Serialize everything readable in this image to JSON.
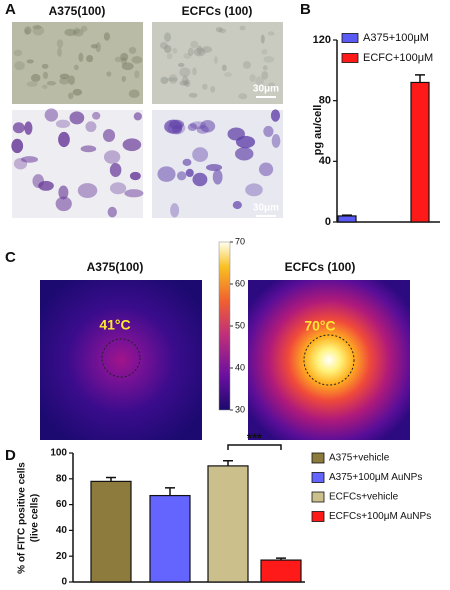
{
  "panel_labels": [
    "A",
    "B",
    "C",
    "D"
  ],
  "panel_a": {
    "titles": [
      "A375(100)",
      "ECFCs (100)"
    ],
    "scale_bars": [
      "30μm",
      "30μm"
    ]
  },
  "panel_c": {
    "titles": [
      "A375(100)",
      "ECFCs (100)"
    ],
    "temperatures": [
      "41°C",
      "70°C"
    ],
    "colorbar": {
      "lim": [
        30,
        70
      ],
      "ticks": [
        30,
        40,
        50,
        60,
        70
      ]
    }
  },
  "chart_data": [
    {
      "type": "bar",
      "ylabel": [
        "pg au/cell"
      ],
      "categories": [
        null
      ],
      "series": [
        {
          "name": "A375+100μM",
          "color": "#5a5af5",
          "values": [
            4
          ],
          "errors": [
            0.5
          ]
        },
        {
          "name": "ECFC+100μM",
          "color": "#ff1a1a",
          "values": [
            92
          ],
          "errors": [
            5
          ]
        }
      ],
      "ylim": [
        0,
        120
      ],
      "yticks": [
        0,
        40,
        80,
        120
      ],
      "grid": false
    },
    {
      "type": "bar",
      "ylabel": [
        "% of FITC positive cells",
        "(live cells)"
      ],
      "categories": [
        null
      ],
      "series": [
        {
          "name": "A375+vehicle",
          "color": "#8c7b3c",
          "values": [
            78
          ],
          "errors": [
            3
          ]
        },
        {
          "name": "A375+100μM AuNPs",
          "color": "#6464ff",
          "values": [
            67
          ],
          "errors": [
            6
          ]
        },
        {
          "name": "ECFCs+vehicle",
          "color": "#cbbf8c",
          "values": [
            90
          ],
          "errors": [
            4
          ]
        },
        {
          "name": "ECFCs+100μM AuNPs",
          "color": "#ff1a1a",
          "values": [
            17
          ],
          "errors": [
            1.5
          ]
        }
      ],
      "annotation": "***",
      "ylim": [
        0,
        100
      ],
      "yticks": [
        0,
        20,
        40,
        60,
        80,
        100
      ],
      "grid": false
    }
  ]
}
